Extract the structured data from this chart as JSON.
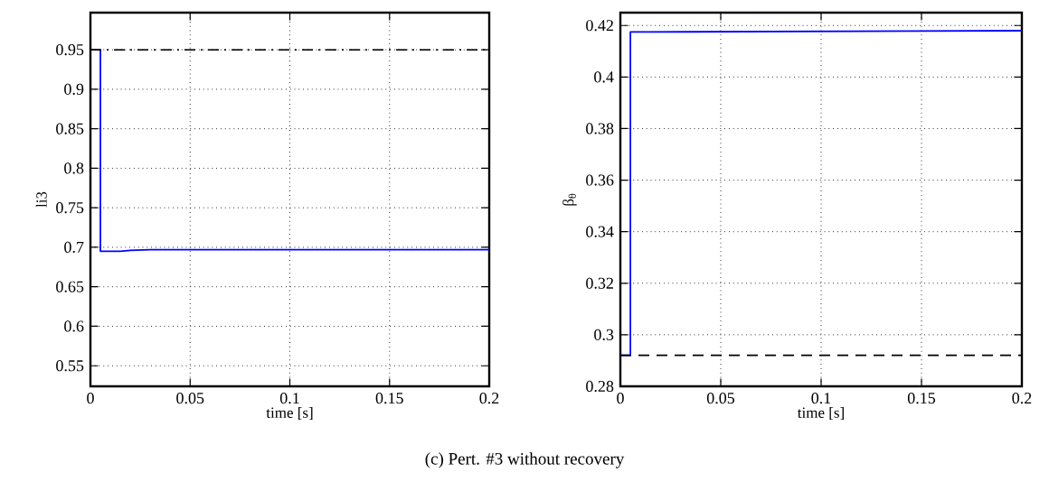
{
  "chart_data": [
    {
      "type": "line",
      "xlabel": "time [s]",
      "ylabel": "li3",
      "xlim": [
        0,
        0.2
      ],
      "ylim": [
        0.524,
        0.997
      ],
      "xticks": [
        0,
        0.05,
        0.1,
        0.15,
        0.2
      ],
      "yticks": [
        0.55,
        0.6,
        0.65,
        0.7,
        0.75,
        0.8,
        0.85,
        0.9,
        0.95
      ],
      "grid": true,
      "annotations": [
        "(c) Pert. #3 without recovery"
      ],
      "series": [
        {
          "color": "#0000ff",
          "x": [
            0,
            0.005,
            0.005,
            0.01,
            0.015,
            0.02,
            0.03,
            0.2
          ],
          "values": [
            0.95,
            0.95,
            0.695,
            0.695,
            0.695,
            0.696,
            0.697,
            0.697
          ]
        },
        {
          "color": "#000000",
          "line_style": "dashdot",
          "x": [
            0,
            0.2
          ],
          "values": [
            0.95,
            0.95
          ]
        }
      ]
    },
    {
      "type": "line",
      "xlabel": "time [s]",
      "ylabel": "β$_{θ}$",
      "xlim": [
        0,
        0.2
      ],
      "ylim": [
        0.28,
        0.425
      ],
      "xticks": [
        0,
        0.05,
        0.1,
        0.15,
        0.2
      ],
      "yticks": [
        0.28,
        0.3,
        0.32,
        0.34,
        0.36,
        0.38,
        0.4,
        0.42
      ],
      "grid": true,
      "series": [
        {
          "color": "#0000ff",
          "x": [
            0,
            0.005,
            0.005,
            0.015,
            0.2
          ],
          "values": [
            0.292,
            0.292,
            0.4175,
            0.4175,
            0.418
          ]
        },
        {
          "color": "#000000",
          "line_style": "dashed",
          "x": [
            0,
            0.2
          ],
          "values": [
            0.292,
            0.292
          ]
        }
      ]
    }
  ]
}
